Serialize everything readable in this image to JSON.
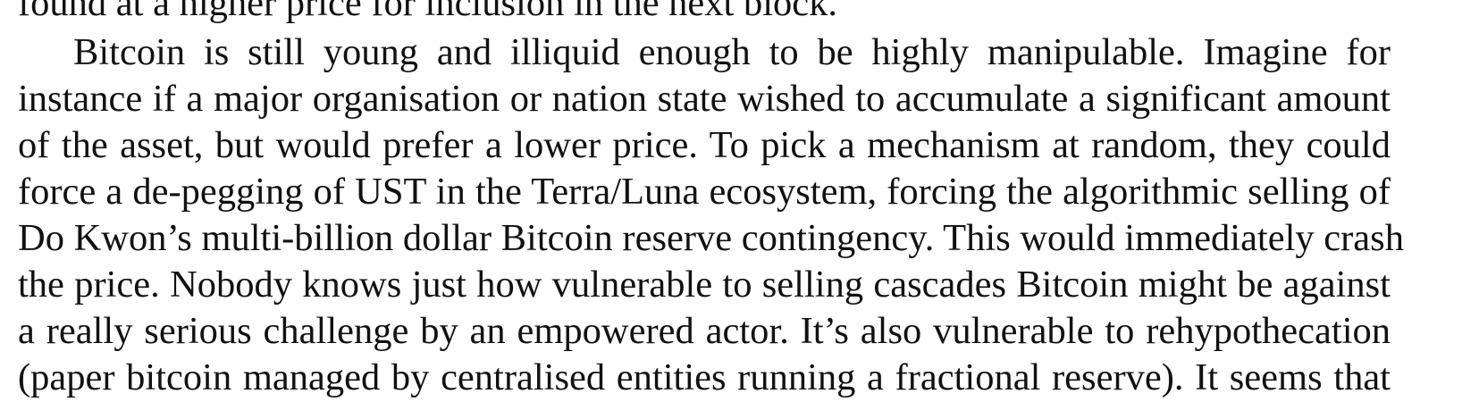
{
  "document": {
    "lines": [
      "found at a higher price for inclusion in the next block.",
      "Bitcoin is still young and illiquid enough to be highly manipulable.  Imagine for",
      "instance if a major organisation or nation state wished to accumulate a significant amount",
      "of the asset, but would prefer a lower price. To pick a mechanism at random, they could",
      "force a de-pegging of UST in the Terra/Luna ecosystem, forcing the algorithmic selling of",
      "Do Kwon’s multi-billion dollar Bitcoin reserve contingency. This would immediately crash",
      "the price. Nobody knows just how vulnerable to selling cascades Bitcoin might be against",
      "a really serious challenge by an empowered actor. It’s also vulnerable to rehypothecation",
      "(paper bitcoin managed by centralised entities running a fractional reserve). It seems that"
    ]
  }
}
